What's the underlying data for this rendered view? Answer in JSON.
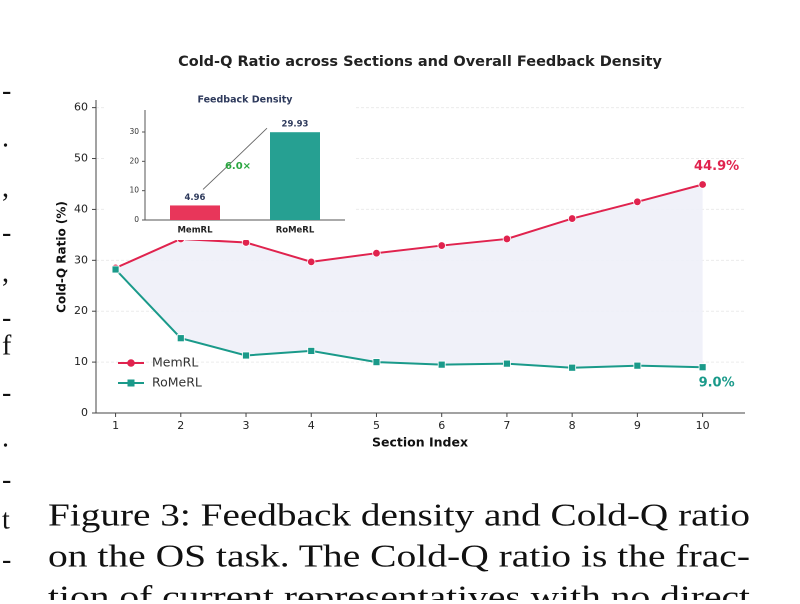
{
  "chart_data": [
    {
      "type": "line",
      "title": "Cold-Q Ratio across Sections and Overall Feedback Density",
      "xlabel": "Section Index",
      "ylabel": "Cold-Q Ratio (%)",
      "x": [
        1,
        2,
        3,
        4,
        5,
        6,
        7,
        8,
        9,
        10
      ],
      "series": [
        {
          "name": "MemRL",
          "color": "#e0234e",
          "marker": "circle",
          "values": [
            28.5,
            34.2,
            33.5,
            29.7,
            31.4,
            32.9,
            34.2,
            38.2,
            41.5,
            44.9
          ]
        },
        {
          "name": "RoMeRL",
          "color": "#1a9a8a",
          "marker": "square",
          "values": [
            28.2,
            14.7,
            11.3,
            12.2,
            10.0,
            9.5,
            9.7,
            8.9,
            9.3,
            9.0
          ]
        }
      ],
      "end_labels": [
        "44.9%",
        "9.0%"
      ],
      "xlim": [
        0.7,
        10.65
      ],
      "xticks": [
        1,
        2,
        3,
        4,
        5,
        6,
        7,
        8,
        9,
        10
      ],
      "ylim": [
        0,
        61.5
      ],
      "yticks": [
        0,
        10,
        20,
        30,
        40,
        50,
        60
      ],
      "grid": true,
      "fill_between_color": "#eef0f8",
      "legend": "lower left"
    },
    {
      "type": "bar",
      "title": "Feedback Density",
      "categories": [
        "MemRL",
        "RoMeRL"
      ],
      "values": [
        4.96,
        29.93
      ],
      "colors": [
        "#e8365a",
        "#26a092"
      ],
      "ylim": [
        0,
        37.5
      ],
      "yticks": [
        0,
        10,
        20,
        30
      ],
      "annotation": "6.0×",
      "annotation_color": "#2aa640"
    }
  ],
  "margin_fragments": [
    "-",
    ".",
    ",",
    "-",
    ",",
    "-",
    "f",
    "-",
    ".",
    "-",
    "t",
    "-"
  ],
  "caption": [
    "Figure 3: Feedback density and Cold-Q ratio",
    "on the OS task. The Cold-Q ratio is the frac-",
    "tion of current representatives with no direct"
  ]
}
